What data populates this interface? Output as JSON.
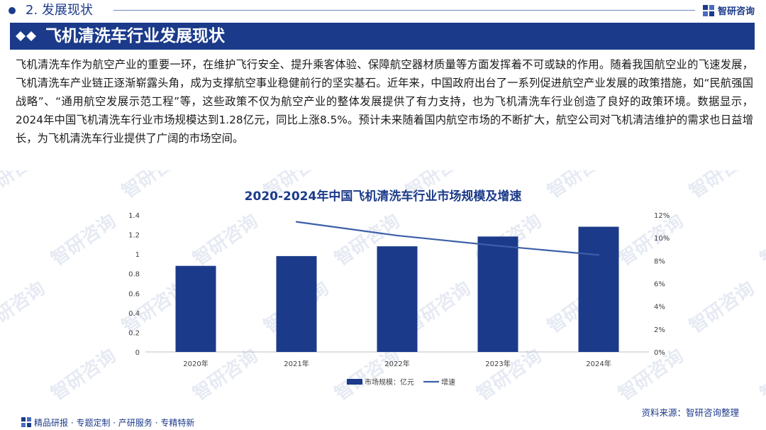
{
  "header": {
    "section_label": "2. 发展现状",
    "brand_name": "智研咨询"
  },
  "banner": {
    "title": "飞机清洗车行业发展现状"
  },
  "body": {
    "paragraph": "飞机清洗车作为航空产业的重要一环，在维护飞行安全、提升乘客体验、保障航空器材质量等方面发挥着不可或缺的作用。随着我国航空业的飞速发展，飞机清洗车产业链正逐渐崭露头角，成为支撑航空事业稳健前行的坚实基石。近年来，中国政府出台了一系列促进航空产业发展的政策措施，如“民航强国战略”、“通用航空发展示范工程”等，这些政策不仅为航空产业的整体发展提供了有力支持，也为飞机清洗车行业创造了良好的政策环境。数据显示，2024年中国飞机清洗车行业市场规模达到1.28亿元，同比上涨8.5%。预计未来随着国内航空市场的不断扩大，航空公司对飞机清洁维护的需求也日益增长，为飞机清洗车行业提供了广阔的市场空间。"
  },
  "chart_data": {
    "type": "bar",
    "title": "2020-2024年中国飞机清洗车行业市场规模及增速",
    "categories": [
      "2020年",
      "2021年",
      "2022年",
      "2023年",
      "2024年"
    ],
    "series": [
      {
        "name": "市场规模：亿元",
        "kind": "bar",
        "axis": "left",
        "values": [
          0.88,
          0.98,
          1.08,
          1.18,
          1.28
        ],
        "color": "#1b3a8a"
      },
      {
        "name": "增速",
        "kind": "line",
        "axis": "right",
        "values": [
          null,
          11.4,
          10.2,
          9.3,
          8.5
        ],
        "color": "#3d5fa8"
      }
    ],
    "y_left": {
      "min": 0,
      "max": 1.4,
      "ticks": [
        "0",
        "0.2",
        "0.4",
        "0.6",
        "0.8",
        "1",
        "1.2",
        "1.4"
      ]
    },
    "y_right": {
      "min": 0,
      "max": 12,
      "ticks": [
        "0%",
        "2%",
        "4%",
        "6%",
        "8%",
        "10%",
        "12%"
      ]
    },
    "grid": false,
    "legend": "bottom-center"
  },
  "source": "资料来源：智研咨询整理",
  "footer": {
    "tagline": "精品研报 · 专题定制 · 产研服务 · 专精特新"
  },
  "watermark_text": "智研咨询",
  "colors": {
    "brand": "#1b3a8a",
    "line": "#3d5fa8",
    "watermark": "#e6eaf3"
  }
}
